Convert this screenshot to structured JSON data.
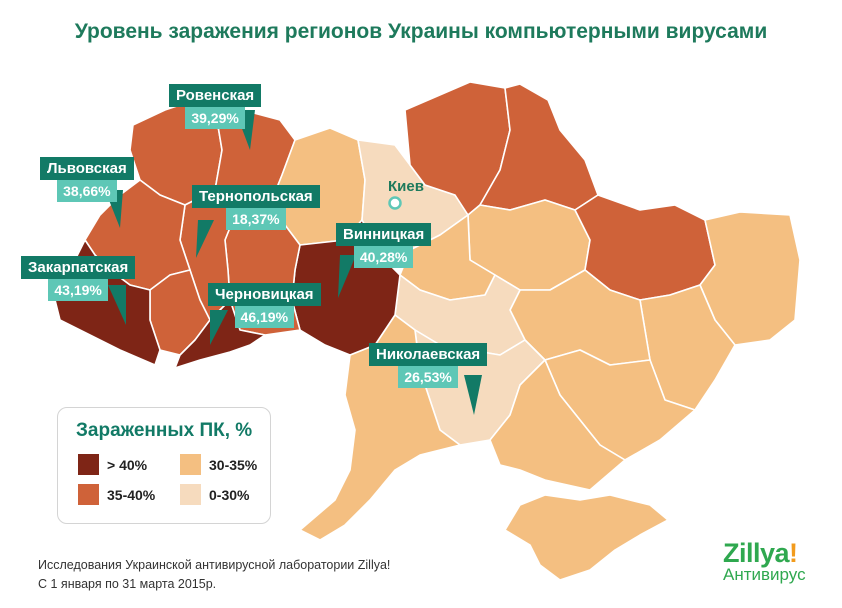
{
  "title": "Уровень заражения регионов Украины компьютерными вирусами",
  "colors": {
    "gt40": "#7e2516",
    "r35_40": "#cf6239",
    "r30_35": "#f4bf81",
    "r0_30": "#f6dbbe",
    "callout_name": "#127a66",
    "callout_value": "#5ec7b6",
    "title": "#1e7a5c"
  },
  "city": {
    "label": "Киев"
  },
  "regions": [
    {
      "name": "Ровенская",
      "value": "39,29%"
    },
    {
      "name": "Львовская",
      "value": "38,66%"
    },
    {
      "name": "Тернопольская",
      "value": "18,37%"
    },
    {
      "name": "Винницкая",
      "value": "40,28%"
    },
    {
      "name": "Закарпатская",
      "value": "43,19%"
    },
    {
      "name": "Черновицкая",
      "value": "46,19%"
    },
    {
      "name": "Николаевская",
      "value": "26,53%"
    }
  ],
  "legend": {
    "title": "Зараженных ПК, %",
    "items": [
      {
        "label": "> 40%",
        "color": "#7e2516"
      },
      {
        "label": "30-35%",
        "color": "#f4bf81"
      },
      {
        "label": "35-40%",
        "color": "#cf6239"
      },
      {
        "label": "0-30%",
        "color": "#f6dbbe"
      }
    ]
  },
  "footer": {
    "line1": "Исследования Украинской антивирусной лаборатории Zillya!",
    "line2": "С 1 января по 31 марта 2015р."
  },
  "logo": {
    "brand": "Zillya",
    "bang": "!",
    "sub": "Антивирус"
  }
}
